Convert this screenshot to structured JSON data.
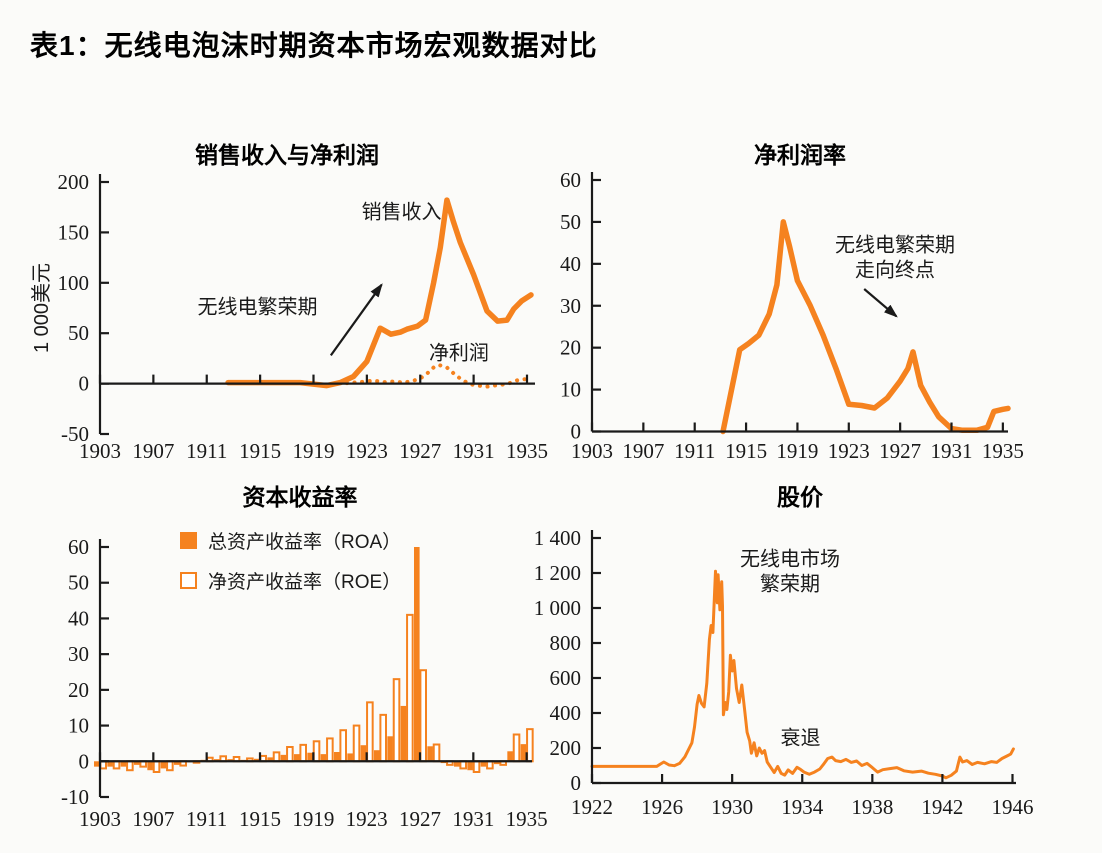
{
  "page": {
    "title": "表1：无线电泡沫时期资本市场宏观数据对比"
  },
  "colors": {
    "orange": "#F5821F",
    "axis": "#1a1a1a",
    "background": "#fbfbf9"
  },
  "chart_data": [
    {
      "id": "sales-and-net-profit",
      "type": "line",
      "title": "销售收入与净利润",
      "ylabel": "1 000美元",
      "xlim": [
        1903,
        1935.6
      ],
      "ylim": [
        -50,
        200
      ],
      "xticks": [
        1903,
        1907,
        1911,
        1915,
        1919,
        1923,
        1927,
        1931,
        1935
      ],
      "yticks": [
        -50,
        0,
        50,
        100,
        150,
        200
      ],
      "ytick_labels": [
        "-50",
        "0",
        "50",
        "100",
        "150",
        "200"
      ],
      "series": [
        {
          "name": "销售收入",
          "line": "solid",
          "points": [
            [
              1912.6,
              1
            ],
            [
              1914,
              1
            ],
            [
              1915,
              1
            ],
            [
              1916,
              1
            ],
            [
              1917,
              1
            ],
            [
              1918,
              1
            ],
            [
              1919,
              -0.5
            ],
            [
              1920,
              -2
            ],
            [
              1921,
              1
            ],
            [
              1922,
              7
            ],
            [
              1923,
              22
            ],
            [
              1924,
              55
            ],
            [
              1924.8,
              49
            ],
            [
              1925.5,
              51
            ],
            [
              1926,
              54
            ],
            [
              1926.8,
              57
            ],
            [
              1927.4,
              63
            ],
            [
              1928,
              100
            ],
            [
              1928.5,
              135
            ],
            [
              1929,
              182
            ],
            [
              1929.5,
              160
            ],
            [
              1930,
              140
            ],
            [
              1931,
              108
            ],
            [
              1932,
              72
            ],
            [
              1932.8,
              62
            ],
            [
              1933.5,
              63
            ],
            [
              1934,
              74
            ],
            [
              1934.6,
              82
            ],
            [
              1935.3,
              88
            ]
          ]
        },
        {
          "name": "净利润",
          "line": "dotted",
          "points": [
            [
              1921.5,
              0.5
            ],
            [
              1922.5,
              1.5
            ],
            [
              1923.5,
              3
            ],
            [
              1924.3,
              1.5
            ],
            [
              1925,
              2
            ],
            [
              1925.8,
              1
            ],
            [
              1926.5,
              3
            ],
            [
              1927,
              5
            ],
            [
              1927.6,
              11
            ],
            [
              1928,
              16
            ],
            [
              1928.4,
              18.5
            ],
            [
              1929,
              16
            ],
            [
              1929.6,
              9
            ],
            [
              1930.2,
              3
            ],
            [
              1931,
              -1.5
            ],
            [
              1932,
              -3
            ],
            [
              1932.8,
              -1.5
            ],
            [
              1933.5,
              -0.5
            ],
            [
              1934.3,
              3.5
            ],
            [
              1935.2,
              5
            ]
          ]
        }
      ],
      "annotations": [
        {
          "text": "销售收入",
          "ax": 1925.6,
          "ay": 172
        },
        {
          "text": "无线电繁荣期",
          "ax": 1914.8,
          "ay": 78
        },
        {
          "text": "净利润",
          "ax": 1929.9,
          "ay": 32
        }
      ],
      "arrows": [
        {
          "x1": 1920.3,
          "y1": 28,
          "x2": 1924.1,
          "y2": 98
        }
      ]
    },
    {
      "id": "net-profit-margin",
      "type": "line",
      "title": "净利润率",
      "xlim": [
        1903,
        1935.4
      ],
      "ylim": [
        0,
        60
      ],
      "xticks": [
        1903,
        1907,
        1911,
        1915,
        1919,
        1923,
        1927,
        1931,
        1935
      ],
      "yticks": [
        0,
        10,
        20,
        30,
        40,
        50,
        60
      ],
      "ytick_labels": [
        "0",
        "10",
        "20",
        "30",
        "40",
        "50",
        "60"
      ],
      "series": [
        {
          "name": "净利润率",
          "line": "solid",
          "points": [
            [
              1913.2,
              0
            ],
            [
              1914.5,
              19.5
            ],
            [
              1915.2,
              21
            ],
            [
              1916,
              23
            ],
            [
              1916.8,
              28
            ],
            [
              1917.4,
              35
            ],
            [
              1917.9,
              50
            ],
            [
              1918.4,
              44
            ],
            [
              1919,
              36
            ],
            [
              1920,
              30
            ],
            [
              1921,
              23
            ],
            [
              1922,
              15
            ],
            [
              1923,
              6.5
            ],
            [
              1924,
              6.2
            ],
            [
              1925,
              5.6
            ],
            [
              1926,
              8
            ],
            [
              1927,
              12
            ],
            [
              1927.6,
              15
            ],
            [
              1928,
              19
            ],
            [
              1928.6,
              11
            ],
            [
              1929.3,
              7
            ],
            [
              1930,
              3.5
            ],
            [
              1931,
              0.7
            ],
            [
              1931.8,
              0.3
            ],
            [
              1933,
              0.3
            ],
            [
              1933.8,
              1
            ],
            [
              1934.3,
              4.8
            ],
            [
              1935,
              5.3
            ],
            [
              1935.4,
              5.5
            ]
          ]
        }
      ],
      "annotations": [
        {
          "text": "无线电繁荣期",
          "ax": 1926.6,
          "ay": 45
        },
        {
          "text": "走向终点",
          "ax": 1926.6,
          "ay": 39
        }
      ],
      "arrows": [
        {
          "x1": 1924.2,
          "y1": 34,
          "x2": 1926.7,
          "y2": 27.5
        }
      ]
    },
    {
      "id": "return-on-capital",
      "type": "bar",
      "title": "资本收益率",
      "xlim": [
        1903,
        1935.4
      ],
      "ylim": [
        -10,
        60
      ],
      "xticks": [
        1903,
        1907,
        1911,
        1915,
        1919,
        1923,
        1927,
        1931,
        1935
      ],
      "yticks": [
        -10,
        0,
        10,
        20,
        30,
        40,
        50,
        60
      ],
      "ytick_labels": [
        "-10",
        "0",
        "10",
        "20",
        "30",
        "40",
        "50",
        "60"
      ],
      "years": [
        1903,
        1904,
        1905,
        1906,
        1907,
        1908,
        1909,
        1910,
        1911,
        1912,
        1913,
        1914,
        1915,
        1916,
        1917,
        1918,
        1919,
        1920,
        1921,
        1922,
        1923,
        1924,
        1925,
        1926,
        1927,
        1928,
        1929,
        1930,
        1931,
        1932,
        1933,
        1934,
        1935
      ],
      "series": [
        {
          "name": "总资产收益率（ROA）",
          "swatch": "filled",
          "values": [
            -1.5,
            -1.5,
            -1.5,
            -1,
            -2.5,
            -2,
            -1,
            -0.3,
            0.4,
            0.6,
            0.6,
            0.4,
            0.7,
            1.1,
            1.8,
            2,
            2.4,
            2,
            2.6,
            2.2,
            4.5,
            3.1,
            7,
            15.5,
            60,
            4.2,
            -0.5,
            -1.5,
            -2.5,
            -1.5,
            -0.8,
            2.8,
            4.8
          ]
        },
        {
          "name": "净资产收益率（ROE）",
          "swatch": "hollow",
          "values": [
            -2,
            -2,
            -2.5,
            -1.5,
            -3,
            -2.5,
            -1.2,
            -0.4,
            1,
            1.4,
            1.2,
            0.8,
            1.5,
            2.5,
            4,
            4.6,
            5.6,
            6.4,
            8.7,
            10,
            16.5,
            13,
            23,
            41,
            25.5,
            4.7,
            -1,
            -2,
            -3,
            -2,
            -1,
            7.5,
            9
          ]
        }
      ],
      "legend": [
        {
          "swatch": "filled",
          "label": "总资产收益率（ROA）"
        },
        {
          "swatch": "hollow",
          "label": "净资产收益率（ROE）"
        }
      ],
      "annotations": []
    },
    {
      "id": "stock-price",
      "type": "line",
      "title": "股价",
      "xlim": [
        1922,
        1946.2
      ],
      "ylim": [
        0,
        1400
      ],
      "xticks": [
        1922,
        1926,
        1930,
        1934,
        1938,
        1942,
        1946
      ],
      "yticks": [
        0,
        200,
        400,
        600,
        800,
        1000,
        1200,
        1400
      ],
      "ytick_labels": [
        "0",
        "200",
        "400",
        "600",
        "800",
        "1 000",
        "1 200",
        "1 400"
      ],
      "series": [
        {
          "name": "股价",
          "line": "thin",
          "points": [
            [
              1922,
              95
            ],
            [
              1925.7,
              95
            ],
            [
              1925.9,
              108
            ],
            [
              1926.1,
              120
            ],
            [
              1926.4,
              103
            ],
            [
              1926.7,
              99
            ],
            [
              1927,
              112
            ],
            [
              1927.3,
              150
            ],
            [
              1927.5,
              190
            ],
            [
              1927.7,
              230
            ],
            [
              1927.85,
              320
            ],
            [
              1928,
              450
            ],
            [
              1928.1,
              500
            ],
            [
              1928.25,
              455
            ],
            [
              1928.4,
              435
            ],
            [
              1928.55,
              570
            ],
            [
              1928.7,
              820
            ],
            [
              1928.8,
              900
            ],
            [
              1928.9,
              860
            ],
            [
              1929,
              1090
            ],
            [
              1929.05,
              1210
            ],
            [
              1929.15,
              1030
            ],
            [
              1929.2,
              1190
            ],
            [
              1929.3,
              990
            ],
            [
              1929.4,
              1150
            ],
            [
              1929.45,
              1010
            ],
            [
              1929.5,
              390
            ],
            [
              1929.6,
              460
            ],
            [
              1929.7,
              420
            ],
            [
              1929.8,
              520
            ],
            [
              1929.9,
              730
            ],
            [
              1930,
              640
            ],
            [
              1930.1,
              700
            ],
            [
              1930.25,
              540
            ],
            [
              1930.4,
              460
            ],
            [
              1930.55,
              560
            ],
            [
              1930.7,
              430
            ],
            [
              1930.85,
              290
            ],
            [
              1931,
              240
            ],
            [
              1931.1,
              170
            ],
            [
              1931.25,
              230
            ],
            [
              1931.4,
              155
            ],
            [
              1931.55,
              200
            ],
            [
              1931.7,
              170
            ],
            [
              1931.85,
              185
            ],
            [
              1932,
              120
            ],
            [
              1932.2,
              90
            ],
            [
              1932.4,
              60
            ],
            [
              1932.6,
              95
            ],
            [
              1932.8,
              55
            ],
            [
              1933,
              45
            ],
            [
              1933.2,
              75
            ],
            [
              1933.45,
              55
            ],
            [
              1933.7,
              90
            ],
            [
              1933.9,
              78
            ],
            [
              1934.1,
              62
            ],
            [
              1934.4,
              50
            ],
            [
              1934.7,
              62
            ],
            [
              1935,
              80
            ],
            [
              1935.2,
              105
            ],
            [
              1935.45,
              140
            ],
            [
              1935.7,
              148
            ],
            [
              1935.9,
              128
            ],
            [
              1936.2,
              122
            ],
            [
              1936.5,
              135
            ],
            [
              1936.8,
              118
            ],
            [
              1937.1,
              126
            ],
            [
              1937.4,
              100
            ],
            [
              1937.7,
              112
            ],
            [
              1938,
              88
            ],
            [
              1938.3,
              62
            ],
            [
              1938.6,
              76
            ],
            [
              1939,
              82
            ],
            [
              1939.4,
              88
            ],
            [
              1939.8,
              70
            ],
            [
              1940.3,
              62
            ],
            [
              1940.8,
              68
            ],
            [
              1941.2,
              56
            ],
            [
              1941.6,
              50
            ],
            [
              1942,
              40
            ],
            [
              1942.2,
              30
            ],
            [
              1942.5,
              44
            ],
            [
              1942.8,
              68
            ],
            [
              1943,
              148
            ],
            [
              1943.15,
              120
            ],
            [
              1943.4,
              128
            ],
            [
              1943.7,
              106
            ],
            [
              1944,
              118
            ],
            [
              1944.4,
              110
            ],
            [
              1944.8,
              122
            ],
            [
              1945.1,
              118
            ],
            [
              1945.4,
              140
            ],
            [
              1945.7,
              155
            ],
            [
              1945.9,
              165
            ],
            [
              1946.05,
              195
            ]
          ]
        }
      ],
      "annotations": [
        {
          "text": "无线电市场",
          "ax": 1933.3,
          "ay": 1290
        },
        {
          "text": "繁荣期",
          "ax": 1933.3,
          "ay": 1150
        },
        {
          "text": "衰退",
          "ax": 1933.9,
          "ay": 270
        }
      ]
    }
  ]
}
